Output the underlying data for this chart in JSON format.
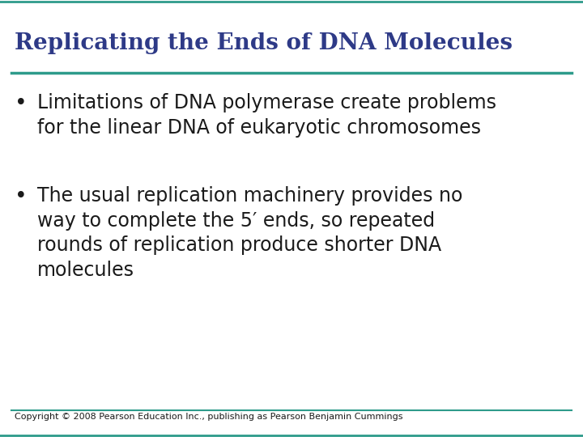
{
  "title": "Replicating the Ends of DNA Molecules",
  "title_color": "#2E3A87",
  "title_fontsize": 20,
  "separator_color": "#2E9B8B",
  "separator_thickness": 2.5,
  "bullet1_line1": "Limitations of DNA polymerase create problems",
  "bullet1_line2": "for the linear DNA of eukaryotic chromosomes",
  "bullet2_line1": "The usual replication machinery provides no",
  "bullet2_line2": "way to complete the 5′ ends, so repeated",
  "bullet2_line3": "rounds of replication produce shorter DNA",
  "bullet2_line4": "molecules",
  "bullet_color": "#1a1a1a",
  "bullet_fontsize": 17,
  "copyright": "Copyright © 2008 Pearson Education Inc., publishing as Pearson Benjamin Cummings",
  "copyright_fontsize": 8,
  "copyright_color": "#1a1a1a",
  "background_color": "#FFFFFF",
  "border_color": "#2E9B8B"
}
